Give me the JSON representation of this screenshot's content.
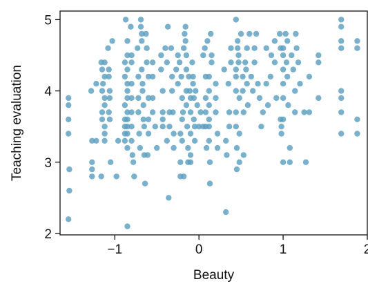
{
  "chart_data": {
    "type": "scatter",
    "title": "",
    "xlabel": "Beauty",
    "ylabel": "Teaching evaluation",
    "xlim": [
      -1.65,
      2.0
    ],
    "ylim": [
      1.98,
      5.12
    ],
    "xticks": [
      -1,
      0,
      1,
      2
    ],
    "xtick_labels": [
      "−1",
      "0",
      "1",
      "2"
    ],
    "yticks": [
      2,
      3,
      4,
      5
    ],
    "ytick_labels": [
      "2",
      "3",
      "4",
      "5"
    ],
    "grid": false,
    "legend": "none",
    "point_color": "#5b9fbf",
    "points": [
      [
        -1.55,
        3.9
      ],
      [
        -1.55,
        3.8
      ],
      [
        -1.55,
        3.6
      ],
      [
        -1.55,
        3.4
      ],
      [
        -1.54,
        2.9
      ],
      [
        -1.54,
        2.6
      ],
      [
        -1.55,
        2.2
      ],
      [
        -1.28,
        4.0
      ],
      [
        -1.27,
        3.3
      ],
      [
        -1.27,
        3.0
      ],
      [
        -1.27,
        2.9
      ],
      [
        -1.27,
        2.8
      ],
      [
        -1.22,
        4.1
      ],
      [
        -1.22,
        3.3
      ],
      [
        -1.16,
        4.4
      ],
      [
        -1.15,
        4.3
      ],
      [
        -1.14,
        4.1
      ],
      [
        -1.15,
        4.0
      ],
      [
        -1.15,
        3.7
      ],
      [
        -1.15,
        3.6
      ],
      [
        -1.16,
        2.8
      ],
      [
        -1.12,
        4.4
      ],
      [
        -1.12,
        4.2
      ],
      [
        -1.12,
        3.9
      ],
      [
        -1.12,
        3.8
      ],
      [
        -1.12,
        3.5
      ],
      [
        -1.12,
        3.4
      ],
      [
        -1.12,
        3.3
      ],
      [
        -1.08,
        4.6
      ],
      [
        -1.07,
        4.3
      ],
      [
        -1.07,
        4.2
      ],
      [
        -1.06,
        4.0
      ],
      [
        -1.06,
        3.9
      ],
      [
        -1.07,
        3.7
      ],
      [
        -1.06,
        3.6
      ],
      [
        -1.05,
        3.0
      ],
      [
        -1.03,
        4.7
      ],
      [
        -0.98,
        2.8
      ],
      [
        -0.96,
        3.3
      ],
      [
        -0.88,
        4.4
      ],
      [
        -0.88,
        4.2
      ],
      [
        -0.88,
        3.8
      ],
      [
        -0.88,
        3.6
      ],
      [
        -0.88,
        3.5
      ],
      [
        -0.88,
        3.4
      ],
      [
        -0.88,
        3.3
      ],
      [
        -0.85,
        4.7
      ],
      [
        -0.85,
        4.5
      ],
      [
        -0.85,
        4.3
      ],
      [
        -0.85,
        4.1
      ],
      [
        -0.85,
        4.0
      ],
      [
        -0.85,
        3.9
      ],
      [
        -0.85,
        3.7
      ],
      [
        -0.85,
        3.6
      ],
      [
        -0.85,
        3.5
      ],
      [
        -0.85,
        3.4
      ],
      [
        -0.85,
        3.2
      ],
      [
        -0.87,
        5.0
      ],
      [
        -0.85,
        2.1
      ],
      [
        -0.81,
        4.9
      ],
      [
        -0.8,
        4.5
      ],
      [
        -0.8,
        4.4
      ],
      [
        -0.8,
        4.1
      ],
      [
        -0.8,
        3.9
      ],
      [
        -0.8,
        3.7
      ],
      [
        -0.8,
        3.5
      ],
      [
        -0.8,
        3.3
      ],
      [
        -0.79,
        3.1
      ],
      [
        -0.78,
        3.0
      ],
      [
        -0.77,
        2.8
      ],
      [
        -0.73,
        4.6
      ],
      [
        -0.72,
        4.2
      ],
      [
        -0.72,
        3.9
      ],
      [
        -0.72,
        3.7
      ],
      [
        -0.71,
        3.4
      ],
      [
        -0.7,
        3.2
      ],
      [
        -0.69,
        5.0
      ],
      [
        -0.69,
        4.9
      ],
      [
        -0.68,
        4.8
      ],
      [
        -0.68,
        4.7
      ],
      [
        -0.68,
        4.3
      ],
      [
        -0.67,
        4.1
      ],
      [
        -0.67,
        4.0
      ],
      [
        -0.66,
        3.8
      ],
      [
        -0.66,
        3.6
      ],
      [
        -0.65,
        3.5
      ],
      [
        -0.65,
        3.1
      ],
      [
        -0.64,
        2.7
      ],
      [
        -0.63,
        4.8
      ],
      [
        -0.62,
        4.6
      ],
      [
        -0.62,
        4.4
      ],
      [
        -0.6,
        4.2
      ],
      [
        -0.6,
        3.9
      ],
      [
        -0.6,
        3.6
      ],
      [
        -0.6,
        3.4
      ],
      [
        -0.61,
        3.1
      ],
      [
        -0.55,
        4.4
      ],
      [
        -0.55,
        4.2
      ],
      [
        -0.55,
        3.9
      ],
      [
        -0.55,
        3.7
      ],
      [
        -0.52,
        3.5
      ],
      [
        -0.5,
        3.2
      ],
      [
        -0.45,
        4.5
      ],
      [
        -0.45,
        4.3
      ],
      [
        -0.43,
        4.0
      ],
      [
        -0.43,
        3.7
      ],
      [
        -0.43,
        3.6
      ],
      [
        -0.43,
        3.5
      ],
      [
        -0.4,
        4.6
      ],
      [
        -0.38,
        4.4
      ],
      [
        -0.38,
        3.3
      ],
      [
        -0.36,
        2.5
      ],
      [
        -0.37,
        4.9
      ],
      [
        -0.35,
        3.7
      ],
      [
        -0.35,
        3.5
      ],
      [
        -0.33,
        4.6
      ],
      [
        -0.32,
        4.2
      ],
      [
        -0.32,
        4.0
      ],
      [
        -0.31,
        3.7
      ],
      [
        -0.3,
        3.4
      ],
      [
        -0.3,
        3.2
      ],
      [
        -0.27,
        4.3
      ],
      [
        -0.25,
        4.1
      ],
      [
        -0.25,
        4.5
      ],
      [
        -0.23,
        4.4
      ],
      [
        -0.22,
        3.4
      ],
      [
        -0.22,
        2.8
      ],
      [
        -0.22,
        3.0
      ],
      [
        -0.21,
        4.2
      ],
      [
        -0.2,
        3.9
      ],
      [
        -0.2,
        3.6
      ],
      [
        -0.2,
        3.3
      ],
      [
        -0.19,
        3.7
      ],
      [
        -0.18,
        2.8
      ],
      [
        -0.18,
        4.6
      ],
      [
        -0.17,
        4.8
      ],
      [
        -0.16,
        4.9
      ],
      [
        -0.16,
        4.7
      ],
      [
        -0.15,
        4.5
      ],
      [
        -0.15,
        4.3
      ],
      [
        -0.15,
        4.0
      ],
      [
        -0.15,
        3.8
      ],
      [
        -0.14,
        3.5
      ],
      [
        -0.13,
        3.2
      ],
      [
        -0.13,
        3.0
      ],
      [
        -0.12,
        4.2
      ],
      [
        -0.11,
        4.0
      ],
      [
        -0.1,
        3.9
      ],
      [
        -0.1,
        3.7
      ],
      [
        -0.1,
        3.4
      ],
      [
        -0.1,
        3.1
      ],
      [
        -0.1,
        3.0
      ],
      [
        -0.08,
        4.4
      ],
      [
        -0.07,
        4.2
      ],
      [
        -0.07,
        4.1
      ],
      [
        -0.06,
        3.9
      ],
      [
        -0.06,
        3.6
      ],
      [
        -0.05,
        3.5
      ],
      [
        -0.05,
        3.3
      ],
      [
        -0.04,
        4.0
      ],
      [
        -0.02,
        3.8
      ],
      [
        0.0,
        3.5
      ],
      [
        0.02,
        3.7
      ],
      [
        0.05,
        4.5
      ],
      [
        0.05,
        3.5
      ],
      [
        0.07,
        4.6
      ],
      [
        0.08,
        4.2
      ],
      [
        0.08,
        3.9
      ],
      [
        0.08,
        3.7
      ],
      [
        0.08,
        3.5
      ],
      [
        0.09,
        3.2
      ],
      [
        0.1,
        4.7
      ],
      [
        0.12,
        4.2
      ],
      [
        0.12,
        4.0
      ],
      [
        0.12,
        3.8
      ],
      [
        0.12,
        3.6
      ],
      [
        0.12,
        3.5
      ],
      [
        0.12,
        3.3
      ],
      [
        0.13,
        3.0
      ],
      [
        0.13,
        2.7
      ],
      [
        0.14,
        4.8
      ],
      [
        0.15,
        4.5
      ],
      [
        0.15,
        4.4
      ],
      [
        0.2,
        4.1
      ],
      [
        0.2,
        3.9
      ],
      [
        0.2,
        3.7
      ],
      [
        0.22,
        3.4
      ],
      [
        0.22,
        3.2
      ],
      [
        0.3,
        4.3
      ],
      [
        0.32,
        3.3
      ],
      [
        0.33,
        3.1
      ],
      [
        0.32,
        2.3
      ],
      [
        0.35,
        4.1
      ],
      [
        0.36,
        3.7
      ],
      [
        0.36,
        3.5
      ],
      [
        0.38,
        4.4
      ],
      [
        0.38,
        4.6
      ],
      [
        0.44,
        5.0
      ],
      [
        0.44,
        4.3
      ],
      [
        0.44,
        4.2
      ],
      [
        0.44,
        4.0
      ],
      [
        0.44,
        3.7
      ],
      [
        0.44,
        3.5
      ],
      [
        0.45,
        3.2
      ],
      [
        0.45,
        2.9
      ],
      [
        0.46,
        4.7
      ],
      [
        0.46,
        4.6
      ],
      [
        0.47,
        4.5
      ],
      [
        0.47,
        4.4
      ],
      [
        0.48,
        3.9
      ],
      [
        0.48,
        3.4
      ],
      [
        0.48,
        3.0
      ],
      [
        0.5,
        4.8
      ],
      [
        0.52,
        4.2
      ],
      [
        0.52,
        4.0
      ],
      [
        0.53,
        3.7
      ],
      [
        0.53,
        3.1
      ],
      [
        0.55,
        4.4
      ],
      [
        0.56,
        4.3
      ],
      [
        0.57,
        4.6
      ],
      [
        0.57,
        4.1
      ],
      [
        0.58,
        3.8
      ],
      [
        0.6,
        4.8
      ],
      [
        0.62,
        4.2
      ],
      [
        0.64,
        4.0
      ],
      [
        0.66,
        4.6
      ],
      [
        0.66,
        4.4
      ],
      [
        0.68,
        4.8
      ],
      [
        0.7,
        4.1
      ],
      [
        0.72,
        3.9
      ],
      [
        0.74,
        3.5
      ],
      [
        0.76,
        3.7
      ],
      [
        0.8,
        4.6
      ],
      [
        0.8,
        4.1
      ],
      [
        0.82,
        3.8
      ],
      [
        0.85,
        4.2
      ],
      [
        0.86,
        4.5
      ],
      [
        0.9,
        4.7
      ],
      [
        0.9,
        4.4
      ],
      [
        0.92,
        3.9
      ],
      [
        0.96,
        4.8
      ],
      [
        0.97,
        4.6
      ],
      [
        0.97,
        3.6
      ],
      [
        0.98,
        3.5
      ],
      [
        0.98,
        3.4
      ],
      [
        1.0,
        4.6
      ],
      [
        1.0,
        4.5
      ],
      [
        1.0,
        4.3
      ],
      [
        1.0,
        4.1
      ],
      [
        1.0,
        3.9
      ],
      [
        1.0,
        3.6
      ],
      [
        1.0,
        3.0
      ],
      [
        1.03,
        4.8
      ],
      [
        1.04,
        4.4
      ],
      [
        1.05,
        4.7
      ],
      [
        1.05,
        4.2
      ],
      [
        1.06,
        3.8
      ],
      [
        1.08,
        3.2
      ],
      [
        1.08,
        3.0
      ],
      [
        1.1,
        4.5
      ],
      [
        1.12,
        4.3
      ],
      [
        1.14,
        4.0
      ],
      [
        1.14,
        3.7
      ],
      [
        1.15,
        4.8
      ],
      [
        1.16,
        4.6
      ],
      [
        1.18,
        4.4
      ],
      [
        1.2,
        4.1
      ],
      [
        1.25,
        3.7
      ],
      [
        1.27,
        3.0
      ],
      [
        1.31,
        3.7
      ],
      [
        1.31,
        4.2
      ],
      [
        1.42,
        4.5
      ],
      [
        1.42,
        4.4
      ],
      [
        1.42,
        3.9
      ],
      [
        1.69,
        5.0
      ],
      [
        1.69,
        4.9
      ],
      [
        1.69,
        4.7
      ],
      [
        1.69,
        4.6
      ],
      [
        1.69,
        4.0
      ],
      [
        1.69,
        3.9
      ],
      [
        1.69,
        3.7
      ],
      [
        1.69,
        3.4
      ],
      [
        1.88,
        4.7
      ],
      [
        1.88,
        4.6
      ],
      [
        1.88,
        3.6
      ],
      [
        1.88,
        3.4
      ]
    ]
  }
}
